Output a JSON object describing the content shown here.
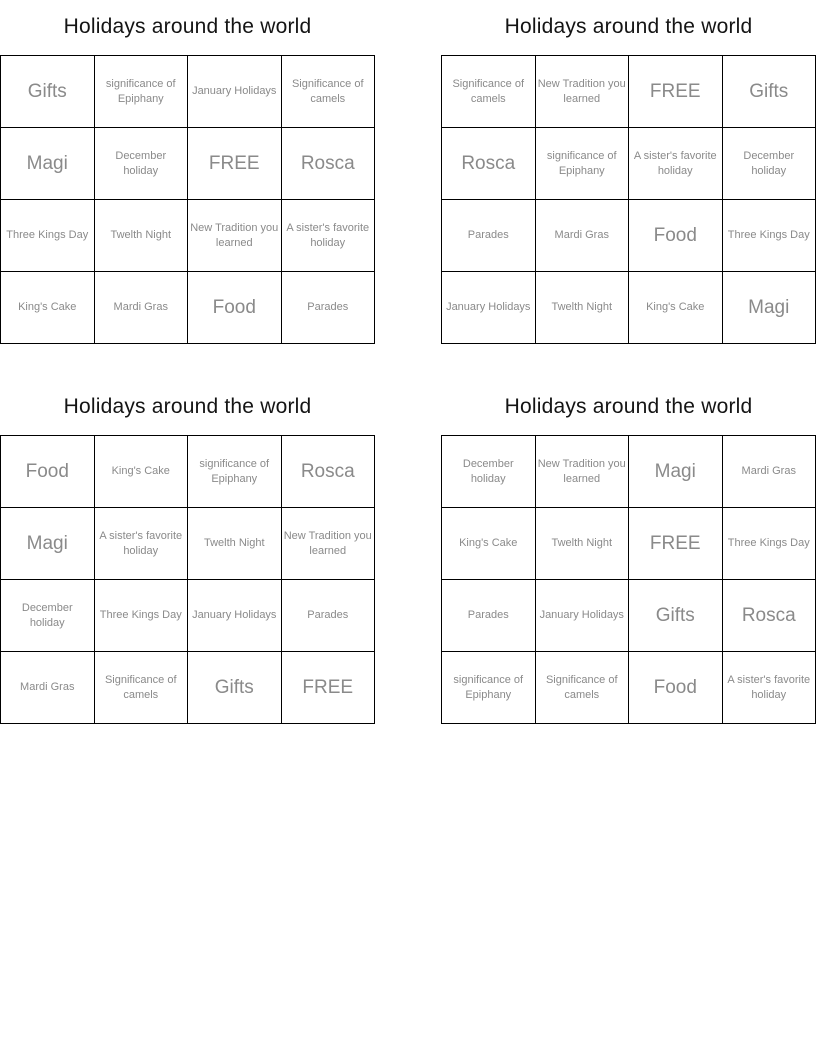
{
  "styles": {
    "title_color": "#141414",
    "cell_text_color": "#8a8a8a",
    "grid_border_color": "#000000",
    "page_background": "#ffffff"
  },
  "cards": [
    {
      "title": "Holidays around the world",
      "cells": [
        "Gifts",
        "significance of Epiphany",
        "January Holidays",
        "Significance of camels",
        "Magi",
        "December holiday",
        "FREE",
        "Rosca",
        "Three Kings Day",
        "Twelth Night",
        "New Tradition you learned",
        "A sister's favorite holiday",
        "King's Cake",
        "Mardi Gras",
        "Food",
        "Parades"
      ]
    },
    {
      "title": "Holidays around the world",
      "cells": [
        "Significance of camels",
        "New Tradition you learned",
        "FREE",
        "Gifts",
        "Rosca",
        "significance of Epiphany",
        "A sister's favorite holiday",
        "December holiday",
        "Parades",
        "Mardi Gras",
        "Food",
        "Three Kings Day",
        "January Holidays",
        "Twelth Night",
        "King's Cake",
        "Magi"
      ]
    },
    {
      "title": "Holidays around the world",
      "cells": [
        "Food",
        "King's Cake",
        "significance of Epiphany",
        "Rosca",
        "Magi",
        "A sister's favorite holiday",
        "Twelth Night",
        "New Tradition you learned",
        "December holiday",
        "Three Kings Day",
        "January Holidays",
        "Parades",
        "Mardi Gras",
        "Significance of camels",
        "Gifts",
        "FREE"
      ]
    },
    {
      "title": "Holidays around the world",
      "cells": [
        "December holiday",
        "New Tradition you learned",
        "Magi",
        "Mardi Gras",
        "King's Cake",
        "Twelth Night",
        "FREE",
        "Three Kings Day",
        "Parades",
        "January Holidays",
        "Gifts",
        "Rosca",
        "significance of Epiphany",
        "Significance of camels",
        "Food",
        "A sister's favorite holiday"
      ]
    }
  ]
}
